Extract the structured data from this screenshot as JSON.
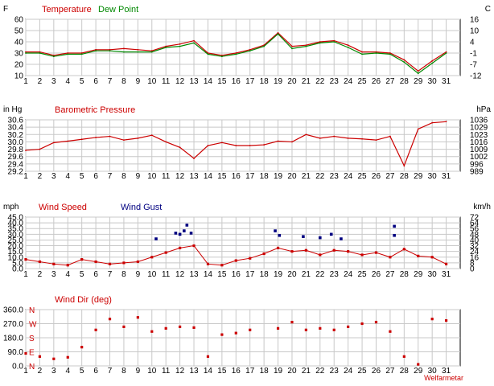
{
  "chart_data": [
    {
      "type": "line",
      "title": "",
      "left_unit": "F",
      "right_unit": "C",
      "legend": [
        {
          "name": "Temperature",
          "color": "#cc0000"
        },
        {
          "name": "Dew Point",
          "color": "#008800"
        }
      ],
      "ylim": [
        10,
        60
      ],
      "yticks": [
        "60",
        "50",
        "40",
        "30",
        "20",
        "10"
      ],
      "right_ticks": [
        "16",
        "10",
        "4",
        "-1",
        "-7",
        "-12"
      ],
      "x": [
        1,
        2,
        3,
        4,
        5,
        6,
        7,
        8,
        9,
        10,
        11,
        12,
        13,
        14,
        15,
        16,
        17,
        18,
        19,
        20,
        21,
        22,
        23,
        24,
        25,
        26,
        27,
        28,
        29,
        30,
        31
      ],
      "xlim": [
        1,
        32
      ],
      "grid": true,
      "series": [
        {
          "name": "Temperature",
          "color": "#cc0000",
          "values": [
            31,
            31,
            28,
            30,
            30,
            33,
            33,
            34,
            33,
            32,
            36,
            38,
            41,
            30,
            28,
            30,
            33,
            37,
            48,
            36,
            37,
            40,
            41,
            37,
            31,
            31,
            30,
            24,
            14,
            23,
            31
          ]
        },
        {
          "name": "Dew Point",
          "color": "#008800",
          "values": [
            30,
            30,
            27,
            29,
            29,
            32,
            32,
            31,
            31,
            31,
            35,
            36,
            39,
            29,
            27,
            29,
            32,
            36,
            47,
            34,
            36,
            39,
            40,
            35,
            29,
            30,
            29,
            22,
            12,
            21,
            30
          ]
        }
      ]
    },
    {
      "type": "line",
      "title": "Barometric Pressure",
      "left_unit": "in Hg",
      "right_unit": "hPa",
      "legend": [],
      "ylim": [
        29.2,
        30.6
      ],
      "yticks": [
        "30.6",
        "30.4",
        "30.2",
        "30.0",
        "29.8",
        "29.6",
        "29.4",
        "29.2"
      ],
      "right_ticks": [
        "1036",
        "1029",
        "1023",
        "1016",
        "1009",
        "1002",
        "996",
        "989"
      ],
      "x": [
        1,
        2,
        3,
        4,
        5,
        6,
        7,
        8,
        9,
        10,
        11,
        12,
        13,
        14,
        15,
        16,
        17,
        18,
        19,
        20,
        21,
        22,
        23,
        24,
        25,
        26,
        27,
        28,
        29,
        30,
        31
      ],
      "xlim": [
        1,
        32
      ],
      "grid": true,
      "series": [
        {
          "name": "Pressure",
          "color": "#cc0000",
          "values": [
            29.77,
            29.8,
            29.98,
            30.02,
            30.07,
            30.12,
            30.15,
            30.05,
            30.1,
            30.18,
            30.0,
            29.85,
            29.55,
            29.9,
            29.98,
            29.9,
            29.9,
            29.92,
            30.02,
            30.0,
            30.2,
            30.1,
            30.15,
            30.1,
            30.08,
            30.05,
            30.15,
            29.35,
            30.35,
            30.52,
            30.55
          ]
        }
      ]
    },
    {
      "type": "scatter",
      "title": "",
      "left_unit": "mph",
      "right_unit": "km/h",
      "legend": [
        {
          "name": "Wind Speed",
          "color": "#cc0000"
        },
        {
          "name": "Wind Gust",
          "color": "#000080"
        }
      ],
      "ylim": [
        0,
        45
      ],
      "yticks": [
        "45.0",
        "40.0",
        "35.0",
        "30.0",
        "25.0",
        "20.0",
        "15.0",
        "10.0",
        "5.0",
        "0.0"
      ],
      "right_ticks": [
        "72",
        "64",
        "56",
        "48",
        "40",
        "32",
        "24",
        "16",
        "8",
        "0"
      ],
      "x": [
        1,
        2,
        3,
        4,
        5,
        6,
        7,
        8,
        9,
        10,
        11,
        12,
        13,
        14,
        15,
        16,
        17,
        18,
        19,
        20,
        21,
        22,
        23,
        24,
        25,
        26,
        27,
        28,
        29,
        30,
        31
      ],
      "xlim": [
        1,
        32
      ],
      "grid": true,
      "series": [
        {
          "name": "Wind Speed",
          "color": "#cc0000",
          "values": [
            8,
            6,
            4,
            3,
            8,
            6,
            4,
            5,
            6,
            10,
            14,
            18,
            20,
            4,
            3,
            7,
            9,
            13,
            18,
            15,
            16,
            12,
            16,
            15,
            12,
            14,
            10,
            17,
            11,
            10,
            4
          ]
        },
        {
          "name": "Wind Gust",
          "color": "#000080",
          "points": [
            [
              10.3,
              26
            ],
            [
              11.7,
              31
            ],
            [
              12.0,
              30
            ],
            [
              12.3,
              33
            ],
            [
              12.5,
              38
            ],
            [
              12.8,
              31
            ],
            [
              18.8,
              33
            ],
            [
              19.1,
              29
            ],
            [
              20.8,
              28
            ],
            [
              22.0,
              27
            ],
            [
              22.8,
              30
            ],
            [
              23.5,
              26
            ],
            [
              27.3,
              37
            ],
            [
              27.3,
              29
            ]
          ]
        }
      ]
    },
    {
      "type": "scatter",
      "title": "Wind Dir (deg)",
      "left_unit": "",
      "right_unit": "",
      "legend": [],
      "ylim": [
        0,
        360
      ],
      "yticks": [
        "360.0",
        "270.0",
        "180.0",
        "90.0",
        "0.0"
      ],
      "compass": [
        "N",
        "W",
        "S",
        "E",
        "N"
      ],
      "x": [
        1,
        2,
        3,
        4,
        5,
        6,
        7,
        8,
        9,
        10,
        11,
        12,
        13,
        14,
        15,
        16,
        17,
        18,
        19,
        20,
        21,
        22,
        23,
        24,
        25,
        26,
        27,
        28,
        29,
        30,
        31
      ],
      "xlim": [
        1,
        32
      ],
      "grid": true,
      "footer": "Welfarmetar",
      "series": [
        {
          "name": "Wind Dir",
          "color": "#cc0000",
          "values": [
            80,
            60,
            45,
            55,
            120,
            230,
            300,
            250,
            310,
            220,
            240,
            250,
            245,
            60,
            200,
            210,
            230,
            null,
            240,
            280,
            230,
            240,
            230,
            250,
            270,
            280,
            220,
            60,
            10,
            300,
            290
          ]
        }
      ]
    }
  ]
}
